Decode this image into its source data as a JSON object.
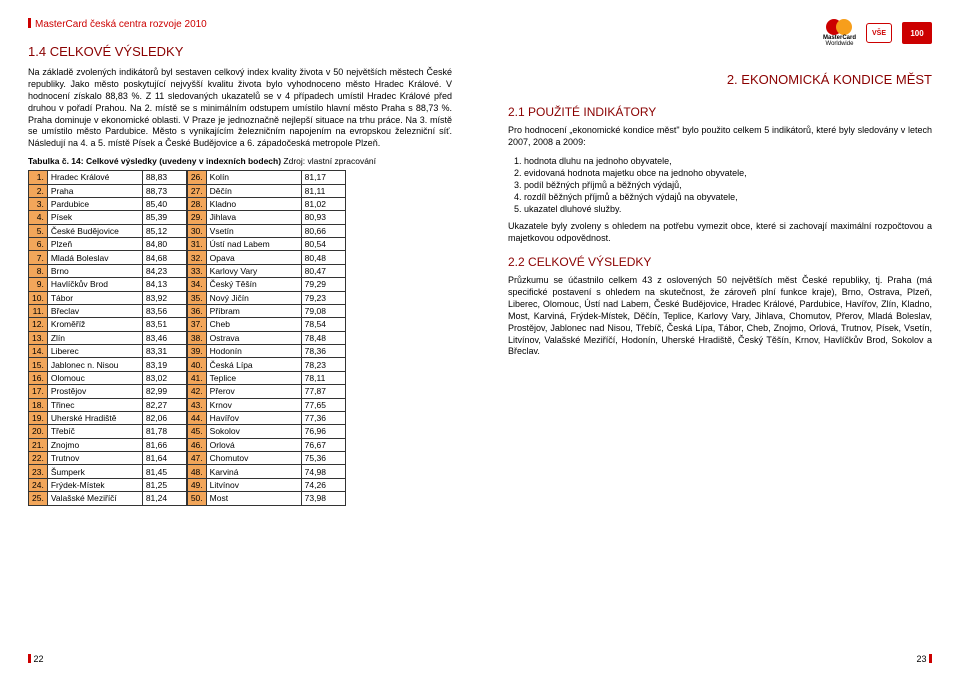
{
  "colors": {
    "accent_red": "#cc0000",
    "dark_red": "#8a0000",
    "rank_bg": "#f2a65a",
    "border": "#333333",
    "text": "#000000",
    "bg": "#ffffff"
  },
  "left_page": {
    "header": "MasterCard česká centra rozvoje 2010",
    "section_number": "1.4",
    "section_title": "CELKOVÉ VÝSLEDKY",
    "paragraph": "Na základě zvolených indikátorů byl sestaven celkový index kvality života v 50 největších městech České republiky. Jako město poskytující nejvyšší kvalitu života bylo vyhodnoceno město Hradec Králové. V hodnocení získalo 88,83 %. Z 11 sledovaných ukazatelů se v 4 případech umístil Hradec Králové před druhou v pořadí Prahou. Na 2. místě se s minimálním odstupem umístilo hlavní město Praha s 88,73 %. Praha dominuje v ekonomické oblasti. V Praze je jednoznačně nejlepší situace na trhu práce. Na 3. místě se umístilo město Pardubice. Město s vynikajícím železničním napojením na evropskou železniční síť. Následují na 4. a 5. místě Písek a České Budějovice a 6. západočeská metropole Plzeň.",
    "table_caption": "Tabulka č. 14: Celkové výsledky (uvedeny v indexních bodech)",
    "table_source": "Zdroj: vlastní zpracování",
    "results": [
      {
        "rank": "1.",
        "city": "Hradec Králové",
        "val": "88,83"
      },
      {
        "rank": "2.",
        "city": "Praha",
        "val": "88,73"
      },
      {
        "rank": "3.",
        "city": "Pardubice",
        "val": "85,40"
      },
      {
        "rank": "4.",
        "city": "Písek",
        "val": "85,39"
      },
      {
        "rank": "5.",
        "city": "České Budějovice",
        "val": "85,12"
      },
      {
        "rank": "6.",
        "city": "Plzeň",
        "val": "84,80"
      },
      {
        "rank": "7.",
        "city": "Mladá Boleslav",
        "val": "84,68"
      },
      {
        "rank": "8.",
        "city": "Brno",
        "val": "84,23"
      },
      {
        "rank": "9.",
        "city": "Havlíčkův Brod",
        "val": "84,13"
      },
      {
        "rank": "10.",
        "city": "Tábor",
        "val": "83,92"
      },
      {
        "rank": "11.",
        "city": "Břeclav",
        "val": "83,56"
      },
      {
        "rank": "12.",
        "city": "Kroměříž",
        "val": "83,51"
      },
      {
        "rank": "13.",
        "city": "Zlín",
        "val": "83,46"
      },
      {
        "rank": "14.",
        "city": "Liberec",
        "val": "83,31"
      },
      {
        "rank": "15.",
        "city": "Jablonec n. Nisou",
        "val": "83,19"
      },
      {
        "rank": "16.",
        "city": "Olomouc",
        "val": "83,02"
      },
      {
        "rank": "17.",
        "city": "Prostějov",
        "val": "82,99"
      },
      {
        "rank": "18.",
        "city": "Třinec",
        "val": "82,27"
      },
      {
        "rank": "19.",
        "city": "Uherské Hradiště",
        "val": "82,06"
      },
      {
        "rank": "20.",
        "city": "Třebíč",
        "val": "81,78"
      },
      {
        "rank": "21.",
        "city": "Znojmo",
        "val": "81,66"
      },
      {
        "rank": "22.",
        "city": "Trutnov",
        "val": "81,64"
      },
      {
        "rank": "23.",
        "city": "Šumperk",
        "val": "81,45"
      },
      {
        "rank": "24.",
        "city": "Frýdek-Místek",
        "val": "81,25"
      },
      {
        "rank": "25.",
        "city": "Valašské Meziříčí",
        "val": "81,24"
      },
      {
        "rank": "26.",
        "city": "Kolín",
        "val": "81,17"
      },
      {
        "rank": "27.",
        "city": "Děčín",
        "val": "81,11"
      },
      {
        "rank": "28.",
        "city": "Kladno",
        "val": "81,02"
      },
      {
        "rank": "29.",
        "city": "Jihlava",
        "val": "80,93"
      },
      {
        "rank": "30.",
        "city": "Vsetín",
        "val": "80,66"
      },
      {
        "rank": "31.",
        "city": "Ústí nad Labem",
        "val": "80,54"
      },
      {
        "rank": "32.",
        "city": "Opava",
        "val": "80,48"
      },
      {
        "rank": "33.",
        "city": "Karlovy Vary",
        "val": "80,47"
      },
      {
        "rank": "34.",
        "city": "Český Těšín",
        "val": "79,29"
      },
      {
        "rank": "35.",
        "city": "Nový Jičín",
        "val": "79,23"
      },
      {
        "rank": "36.",
        "city": "Příbram",
        "val": "79,08"
      },
      {
        "rank": "37.",
        "city": "Cheb",
        "val": "78,54"
      },
      {
        "rank": "38.",
        "city": "Ostrava",
        "val": "78,48"
      },
      {
        "rank": "39.",
        "city": "Hodonín",
        "val": "78,36"
      },
      {
        "rank": "40.",
        "city": "Česká Lípa",
        "val": "78,23"
      },
      {
        "rank": "41.",
        "city": "Teplice",
        "val": "78,11"
      },
      {
        "rank": "42.",
        "city": "Přerov",
        "val": "77,87"
      },
      {
        "rank": "43.",
        "city": "Krnov",
        "val": "77,65"
      },
      {
        "rank": "44.",
        "city": "Havířov",
        "val": "77,36"
      },
      {
        "rank": "45.",
        "city": "Sokolov",
        "val": "76,96"
      },
      {
        "rank": "46.",
        "city": "Orlová",
        "val": "76,67"
      },
      {
        "rank": "47.",
        "city": "Chomutov",
        "val": "75,36"
      },
      {
        "rank": "48.",
        "city": "Karviná",
        "val": "74,98"
      },
      {
        "rank": "49.",
        "city": "Litvínov",
        "val": "74,26"
      },
      {
        "rank": "50.",
        "city": "Most",
        "val": "73,98"
      }
    ],
    "page_number": "22"
  },
  "right_page": {
    "logo_mc_label": "MasterCard",
    "logo_mc_sub": "Worldwide",
    "logo_vse": "VŠE",
    "logo_100": "100",
    "section_number": "2.",
    "section_title": "EKONOMICKÁ KONDICE MĚST",
    "sub1_num": "2.1",
    "sub1_title": "POUŽITÉ INDIKÁTORY",
    "p1": "Pro hodnocení „ekonomické kondice měst\" bylo použito celkem 5 indikátorů, které byly sledovány v letech 2007, 2008 a 2009:",
    "indicators": [
      "hodnota dluhu na jednoho obyvatele,",
      "evidovaná hodnota majetku obce na jednoho obyvatele,",
      "podíl běžných příjmů a běžných výdajů,",
      "rozdíl běžných příjmů a běžných výdajů na obyvatele,",
      "ukazatel dluhové služby."
    ],
    "p2": "Ukazatele byly zvoleny s ohledem na potřebu vymezit obce, které si zachovají maximální rozpočtovou a majetkovou odpovědnost.",
    "sub2_num": "2.2",
    "sub2_title": "CELKOVÉ VÝSLEDKY",
    "p3": "Průzkumu se účastnilo celkem 43 z oslovených 50 největších měst České republiky, tj. Praha (má specifické postavení s ohledem na skutečnost, že zároveň plní funkce kraje), Brno, Ostrava, Plzeň, Liberec, Olomouc, Ústí nad Labem, České Budějovice, Hradec Králové, Pardubice, Havířov, Zlín, Kladno, Most, Karviná, Frýdek-Místek, Děčín, Teplice, Karlovy Vary, Jihlava, Chomutov, Přerov, Mladá Boleslav, Prostějov, Jablonec nad Nisou, Třebíč, Česká Lípa, Tábor, Cheb, Znojmo, Orlová, Trutnov, Písek, Vsetín, Litvínov, Valašské Meziříčí, Hodonín, Uherské Hradiště, Český Těšín, Krnov, Havlíčkův Brod, Sokolov a Břeclav.",
    "page_number": "23"
  }
}
